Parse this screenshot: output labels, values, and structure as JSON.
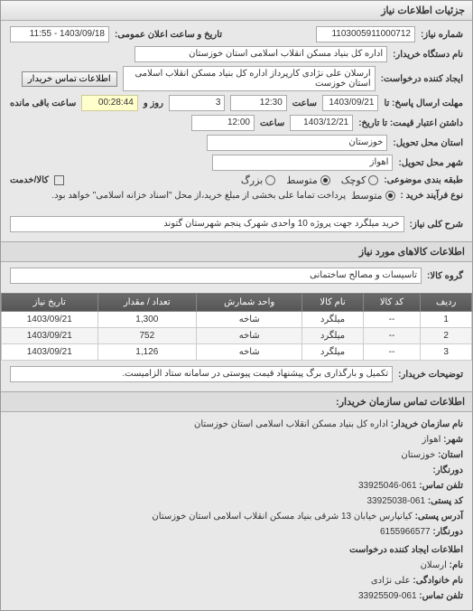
{
  "header": {
    "title": "جزئیات اطلاعات نیاز"
  },
  "req": {
    "number_label": "شماره نیاز:",
    "number": "1103005911000712",
    "announce_label": "تاریخ و ساعت اعلان عمومی:",
    "announce": "1403/09/18 - 11:55",
    "buyer_label": "نام دستگاه خریدار:",
    "buyer": "اداره کل بنیاد مسکن انقلاب اسلامی استان خوزستان",
    "creator_label": "ایجاد کننده درخواست:",
    "creator": "ارسلان علی نژادی کارپرداز اداره کل بنیاد مسکن انقلاب اسلامی استان خوزست",
    "contact_btn": "اطلاعات تماس خریدار",
    "deadline_label": "مهلت ارسال پاسخ: تا",
    "deadline_date": "1403/09/21",
    "deadline_time_label": "ساعت",
    "deadline_time": "12:30",
    "remain_days": "3",
    "remain_days_label": "روز و",
    "remain_time": "00:28:44",
    "remain_label": "ساعت باقی مانده",
    "price_valid_label": "داشتن اعتبار قیمت: تا تاریخ:",
    "price_valid_date": "1403/12/21",
    "price_valid_time_label": "ساعت",
    "price_valid_time": "12:00",
    "province_label": "استان محل تحویل:",
    "province": "خوزستان",
    "city_label": "شهر محل تحویل:",
    "city": "اهواز",
    "category_label": "طبقه بندی موضوعی:",
    "radio_small": "کوچک",
    "radio_medium": "متوسط",
    "radio_large": "بزرگ",
    "cash_label": "کالا/خدمت",
    "process_label": "نوع فرآیند خرید :",
    "radio_medium2": "متوسط",
    "process_note": "پرداخت تماما علی بخشی از مبلغ خرید،از محل \"اسناد خزانه اسلامی\" خواهد بود."
  },
  "desc": {
    "label": "شرح کلی نیاز:",
    "text": "خرید میلگرد جهت پروژه 10 واحدی شهرک پنجم شهرستان گتوند"
  },
  "goods": {
    "title": "اطلاعات کالاهای مورد نیاز",
    "group_label": "گروه کالا:",
    "group": "تاسیسات و مصالح ساختمانی"
  },
  "table": {
    "headers": [
      "ردیف",
      "کد کالا",
      "نام کالا",
      "واحد شمارش",
      "تعداد / مقدار",
      "تاریخ نیاز"
    ],
    "rows": [
      [
        "1",
        "--",
        "میلگرد",
        "شاخه",
        "1,300",
        "1403/09/21"
      ],
      [
        "2",
        "--",
        "میلگرد",
        "شاخه",
        "752",
        "1403/09/21"
      ],
      [
        "3",
        "--",
        "میلگرد",
        "شاخه",
        "1,126",
        "1403/09/21"
      ]
    ]
  },
  "buyer_note": {
    "label": "توضیحات خریدار:",
    "text": "تکمیل و بارگذاری برگ پیشنهاد قیمت پیوستی در سامانه ستاد الزامیست."
  },
  "org": {
    "title": "اطلاعات تماس سازمان خریدار:",
    "name_label": "نام سازمان خریدار:",
    "name": "اداره کل بنیاد مسکن انقلاب اسلامی استان خوزستان",
    "city_label": "شهر:",
    "city": "اهواز",
    "province_label": "استان:",
    "province": "خوزستان",
    "phone_label": "تلفن تماس:",
    "phone": "061-33925046",
    "postal_label": "کد پستی:",
    "postal": "061-33925038",
    "address_label": "آدرس پستی:",
    "address": "کیانپارس خیابان 13 شرقی بنیاد مسکن انقلاب اسلامی استان خوزستان",
    "fax_label": "دورنگار:",
    "fax": "6155966577",
    "req_creator_title": "اطلاعات ایجاد کننده درخواست",
    "fname_label": "نام:",
    "fname": "ارسلان",
    "lname_label": "نام خانوادگی:",
    "lname": "علی نژادی",
    "cphone_label": "تلفن تماس:",
    "cphone": "061-33925509"
  }
}
